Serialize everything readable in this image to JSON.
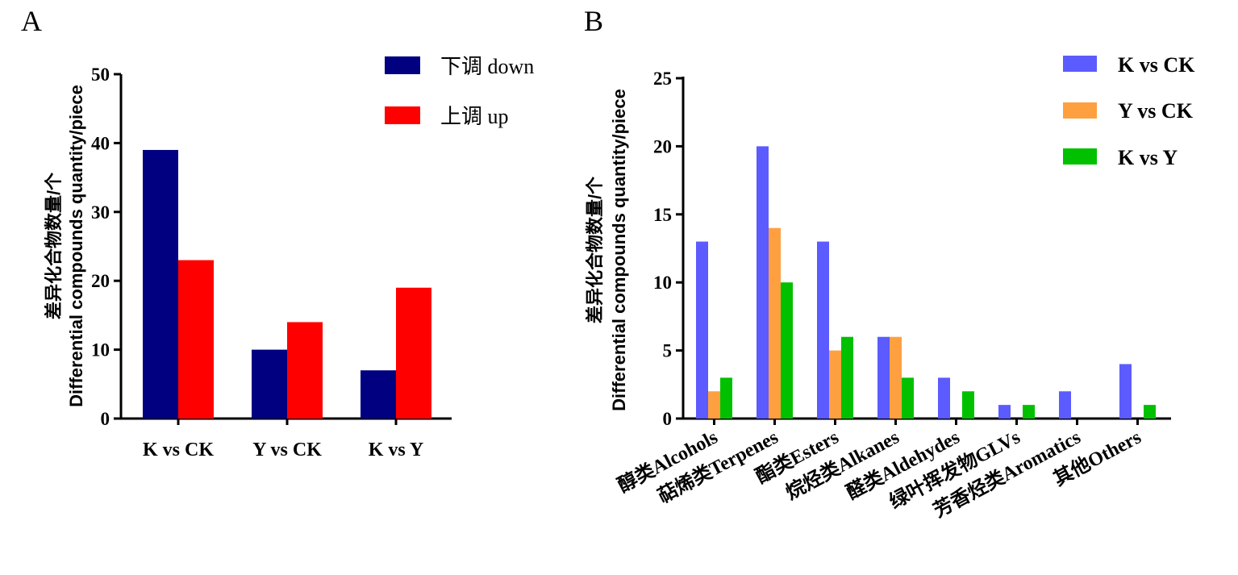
{
  "chart_data": [
    {
      "panel": "A",
      "type": "bar",
      "ylabel": "差异化合物数量/个 Differential compounds quantity/piece",
      "ylim": [
        0,
        50
      ],
      "yticks": [
        0,
        10,
        20,
        30,
        40,
        50
      ],
      "categories": [
        "K vs CK",
        "Y vs CK",
        "K vs Y"
      ],
      "series": [
        {
          "name": "下调 down",
          "color": "#000080",
          "values": [
            39,
            10,
            7
          ]
        },
        {
          "name": "上调 up",
          "color": "#ff0000",
          "values": [
            23,
            14,
            19
          ]
        }
      ],
      "legend": "top-right"
    },
    {
      "panel": "B",
      "type": "bar",
      "ylabel": "差异化合物数量/个 Differential compounds quantity/piece",
      "ylim": [
        0,
        25
      ],
      "yticks": [
        0,
        5,
        10,
        15,
        20,
        25
      ],
      "categories": [
        "醇类Alcohols",
        "萜烯类Terpenes",
        "酯类Esters",
        "烷烃类Alkanes",
        "醛类Aldehydes",
        "绿叶挥发物GLVs",
        "芳香烃类Aromatics",
        "其他Others"
      ],
      "series": [
        {
          "name": "K vs CK",
          "color": "#5b5bff",
          "values": [
            13,
            20,
            13,
            6,
            3,
            1,
            2,
            4
          ]
        },
        {
          "name": "Y vs CK",
          "color": "#ffa040",
          "values": [
            2,
            14,
            5,
            6,
            0,
            0,
            0,
            0
          ]
        },
        {
          "name": "K vs Y",
          "color": "#00c000",
          "values": [
            3,
            10,
            6,
            3,
            2,
            1,
            0,
            1
          ]
        }
      ],
      "legend": "top-right"
    }
  ],
  "text": {
    "panel_a_label": "A",
    "panel_b_label": "B",
    "a_ytitle_zh": "差异化合物数量/个",
    "a_ytitle_en": "Differential compounds quantity/piece",
    "b_ytitle_zh": "差异化合物数量/个",
    "b_ytitle_en": "Differential compounds quantity/piece",
    "a_legend_down": "下调 down",
    "a_legend_up": "上调 up",
    "b_legend_1": "K vs CK",
    "b_legend_2": "Y vs CK",
    "b_legend_3": "K vs Y"
  }
}
